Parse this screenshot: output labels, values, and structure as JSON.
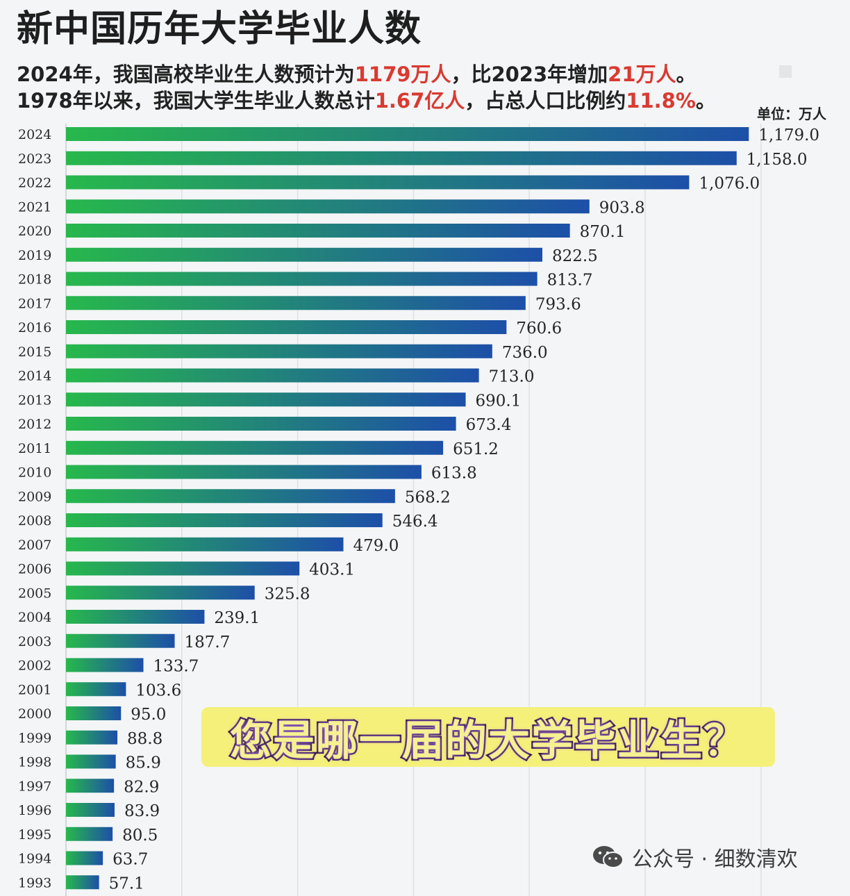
{
  "header": {
    "title": "新中国历年大学毕业人数",
    "line1": [
      {
        "text": "2024年，我国高校毕业生人数预计为",
        "hl": false
      },
      {
        "text": "1179万人",
        "hl": true
      },
      {
        "text": "，比2023年增加",
        "hl": false
      },
      {
        "text": "21万人",
        "hl": true
      },
      {
        "text": "。",
        "hl": false
      }
    ],
    "line2": [
      {
        "text": "1978年以来，我国大学生毕业人数总计",
        "hl": false
      },
      {
        "text": "1.67亿人",
        "hl": true
      },
      {
        "text": "，占总人口比例约",
        "hl": false
      },
      {
        "text": "11.8%",
        "hl": true
      },
      {
        "text": "。",
        "hl": false
      }
    ],
    "unit": "单位：万人"
  },
  "callout": "您是哪一届的大学毕业生？",
  "watermark": {
    "icon": "wechat-icon",
    "text": "公众号 · 细数清欢"
  },
  "colors": {
    "bar_start": "#27b84c",
    "bar_end": "#1d4fa8",
    "highlight": "#d93a32"
  },
  "chart_data": {
    "type": "bar",
    "orientation": "horizontal",
    "categories": [
      "2024",
      "2023",
      "2022",
      "2021",
      "2020",
      "2019",
      "2018",
      "2017",
      "2016",
      "2015",
      "2014",
      "2013",
      "2012",
      "2011",
      "2010",
      "2009",
      "2008",
      "2007",
      "2006",
      "2005",
      "2004",
      "2003",
      "2002",
      "2001",
      "2000",
      "1999",
      "1998",
      "1997",
      "1996",
      "1995",
      "1994",
      "1993"
    ],
    "values": [
      1179.0,
      1158.0,
      1076.0,
      903.8,
      870.1,
      822.5,
      813.7,
      793.6,
      760.6,
      736.0,
      713.0,
      690.1,
      673.4,
      651.2,
      613.8,
      568.2,
      546.4,
      479.0,
      403.1,
      325.8,
      239.1,
      187.7,
      133.7,
      103.6,
      95.0,
      88.8,
      85.9,
      82.9,
      83.9,
      80.5,
      63.7,
      57.1
    ],
    "value_labels": [
      "1,179.0",
      "1,158.0",
      "1,076.0",
      "903.8",
      "870.1",
      "822.5",
      "813.7",
      "793.6",
      "760.6",
      "736.0",
      "713.0",
      "690.1",
      "673.4",
      "651.2",
      "613.8",
      "568.2",
      "546.4",
      "479.0",
      "403.1",
      "325.8",
      "239.1",
      "187.7",
      "133.7",
      "103.6",
      "95.0",
      "88.8",
      "85.9",
      "82.9",
      "83.9",
      "80.5",
      "63.7",
      "57.1"
    ],
    "xlim": [
      0,
      1200
    ],
    "grid": true
  }
}
